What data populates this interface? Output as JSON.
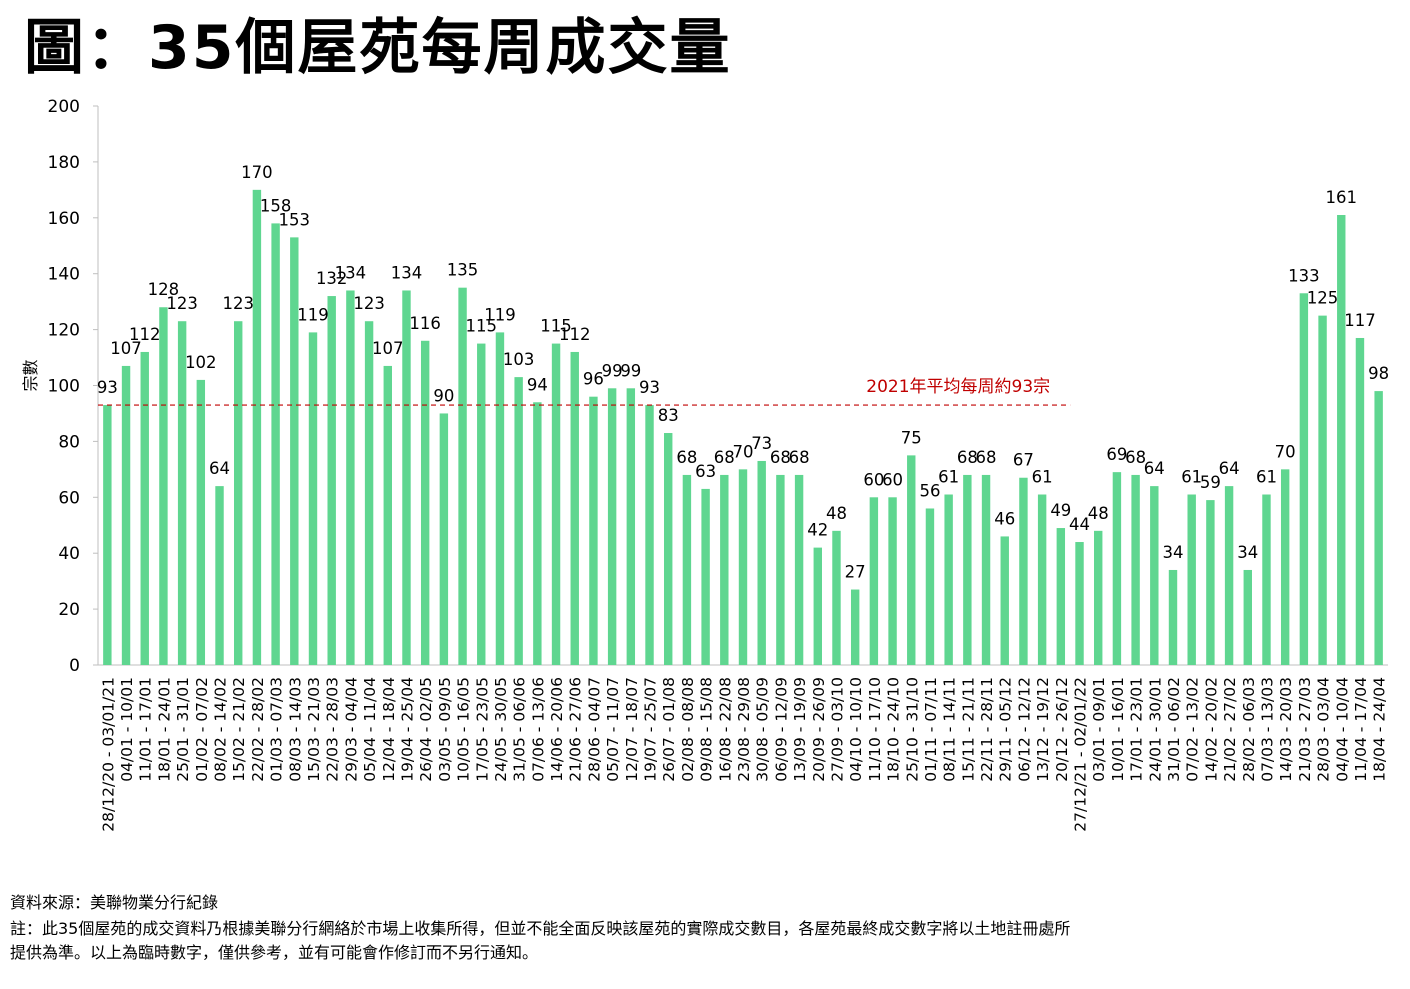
{
  "title": "圖：35個屋苑每周成交量",
  "source": "資料來源：美聯物業分行紀錄",
  "notes": [
    "註：此35個屋苑的成交資料乃根據美聯分行網絡於市場上收集所得，但並不能全面反映該屋苑的實際成交數目，各屋苑最終成交數字將以土地註冊處所",
    "提供為準。以上為臨時數字，僅供參考，並有可能會作修訂而不另行通知。"
  ],
  "chart_data": {
    "type": "bar",
    "ylabel": "宗數",
    "ylim": [
      0,
      200
    ],
    "yticks": [
      0,
      20,
      40,
      60,
      80,
      100,
      120,
      140,
      160,
      180,
      200
    ],
    "bar_color": "#5fd690",
    "categories": [
      "28/12/20 - 03/01/21",
      "04/01 - 10/01",
      "11/01 - 17/01",
      "18/01 - 24/01",
      "25/01 - 31/01",
      "01/02 - 07/02",
      "08/02 - 14/02",
      "15/02 - 21/02",
      "22/02 - 28/02",
      "01/03 - 07/03",
      "08/03 - 14/03",
      "15/03 - 21/03",
      "22/03 - 28/03",
      "29/03 - 04/04",
      "05/04 - 11/04",
      "12/04 - 18/04",
      "19/04 - 25/04",
      "26/04 - 02/05",
      "03/05 - 09/05",
      "10/05 - 16/05",
      "17/05 - 23/05",
      "24/05 - 30/05",
      "31/05 - 06/06",
      "07/06 - 13/06",
      "14/06 - 20/06",
      "21/06 - 27/06",
      "28/06 - 04/07",
      "05/07 - 11/07",
      "12/07 - 18/07",
      "19/07 - 25/07",
      "26/07 - 01/08",
      "02/08 - 08/08",
      "09/08 - 15/08",
      "16/08 - 22/08",
      "23/08 - 29/08",
      "30/08 - 05/09",
      "06/09 - 12/09",
      "13/09 - 19/09",
      "20/09 - 26/09",
      "27/09 - 03/10",
      "04/10 - 10/10",
      "11/10 - 17/10",
      "18/10 - 24/10",
      "25/10 - 31/10",
      "01/11 - 07/11",
      "08/11 - 14/11",
      "15/11 - 21/11",
      "22/11 - 28/11",
      "29/11 - 05/12",
      "06/12 - 12/12",
      "13/12 - 19/12",
      "20/12 - 26/12",
      "27/12/21 - 02/01/22",
      "03/01 - 09/01",
      "10/01 - 16/01",
      "17/01 - 23/01",
      "24/01 - 30/01",
      "31/01 - 06/02",
      "07/02 - 13/02",
      "14/02 - 20/02",
      "21/02 - 27/02",
      "28/02 - 06/03",
      "07/03 - 13/03",
      "14/03 - 20/03",
      "21/03 - 27/03",
      "28/03 - 03/04",
      "04/04 - 10/04",
      "11/04 - 17/04",
      "18/04 - 24/04"
    ],
    "values": [
      93,
      107,
      112,
      128,
      123,
      102,
      64,
      123,
      170,
      158,
      153,
      119,
      132,
      134,
      123,
      107,
      134,
      116,
      90,
      135,
      115,
      119,
      103,
      94,
      115,
      112,
      96,
      99,
      99,
      93,
      83,
      68,
      63,
      68,
      70,
      73,
      68,
      68,
      42,
      48,
      27,
      60,
      60,
      75,
      56,
      61,
      68,
      68,
      46,
      67,
      61,
      49,
      44,
      48,
      69,
      68,
      64,
      34,
      61,
      59,
      64,
      34,
      61,
      70,
      133,
      125,
      161,
      117,
      98
    ],
    "reference_line": {
      "value": 93,
      "label": "2021年平均每周約93宗",
      "color": "#c00000",
      "style": "dashed",
      "spans_first_n_bars": 52
    },
    "grid": false,
    "legend": "none"
  }
}
